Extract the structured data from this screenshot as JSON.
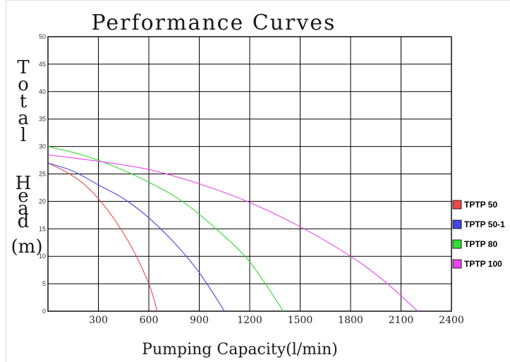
{
  "chart_data": {
    "type": "line",
    "title": "Performance Curves",
    "xlabel": "Pumping Capacity(l/min)",
    "ylabel": "Total Head (m)",
    "ylabel_words": [
      "Total",
      "Head",
      "(m)"
    ],
    "xlim": [
      0,
      2400
    ],
    "ylim": [
      0,
      50
    ],
    "x_ticks": [
      300,
      600,
      900,
      1200,
      1500,
      1800,
      2100,
      2400
    ],
    "y_ticks": [
      0,
      5,
      10,
      15,
      20,
      25,
      30,
      35,
      40,
      45,
      50
    ],
    "grid": true,
    "legend_position": "right",
    "series": [
      {
        "name": "TPTP 50",
        "color": "#e84b4b",
        "points": [
          [
            0,
            27
          ],
          [
            100,
            25.5
          ],
          [
            200,
            23.5
          ],
          [
            300,
            20.5
          ],
          [
            400,
            16.5
          ],
          [
            500,
            11.5
          ],
          [
            600,
            5
          ],
          [
            650,
            0
          ]
        ]
      },
      {
        "name": "TPTP 50-1",
        "color": "#4646e0",
        "points": [
          [
            0,
            27
          ],
          [
            150,
            25.5
          ],
          [
            300,
            23
          ],
          [
            450,
            20.5
          ],
          [
            600,
            17
          ],
          [
            750,
            12.5
          ],
          [
            900,
            7
          ],
          [
            1050,
            0
          ]
        ]
      },
      {
        "name": "TPTP 80",
        "color": "#33dd33",
        "points": [
          [
            0,
            30
          ],
          [
            200,
            28.5
          ],
          [
            400,
            26.3
          ],
          [
            600,
            23.5
          ],
          [
            800,
            20
          ],
          [
            1000,
            15
          ],
          [
            1200,
            9
          ],
          [
            1400,
            0
          ]
        ]
      },
      {
        "name": "TPTP 100",
        "color": "#ee44ee",
        "points": [
          [
            0,
            28.5
          ],
          [
            300,
            27.3
          ],
          [
            600,
            25.8
          ],
          [
            900,
            23.2
          ],
          [
            1200,
            19.8
          ],
          [
            1500,
            15.4
          ],
          [
            1800,
            10
          ],
          [
            2000,
            5.5
          ],
          [
            2200,
            0
          ]
        ]
      }
    ]
  }
}
